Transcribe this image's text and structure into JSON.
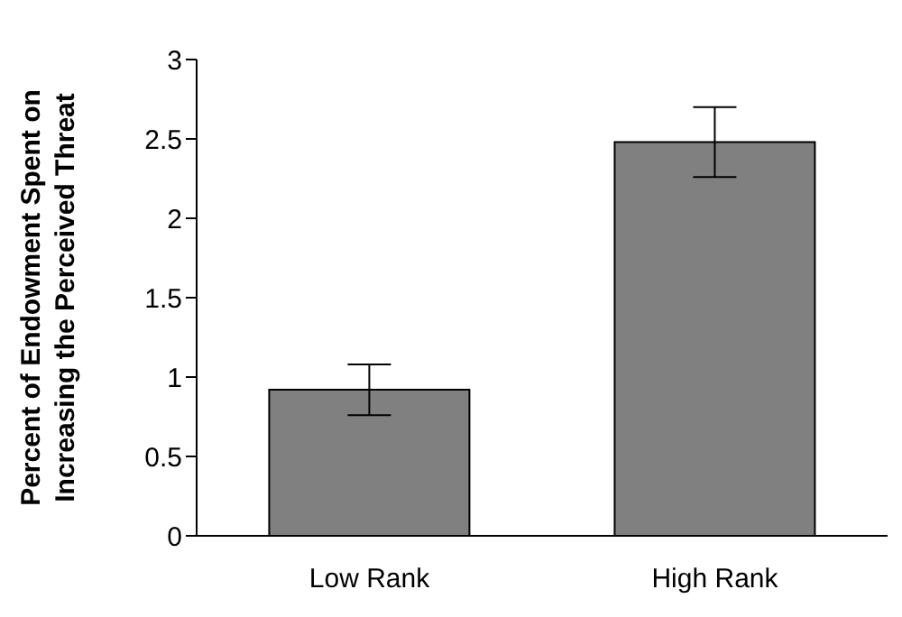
{
  "chart_data": {
    "type": "bar",
    "ylabel": "Percent of Endowment Spent on Increasing the Perceived Threat",
    "categories": [
      "Low Rank",
      "High Rank"
    ],
    "values": [
      0.92,
      2.48
    ],
    "errors": [
      [
        0.76,
        1.08
      ],
      [
        2.26,
        2.7
      ]
    ],
    "color": "#808080",
    "ylim": [
      0,
      3
    ],
    "yticks": [
      0,
      0.5,
      1,
      1.5,
      2,
      2.5,
      3
    ],
    "grid": false,
    "legend": false
  }
}
